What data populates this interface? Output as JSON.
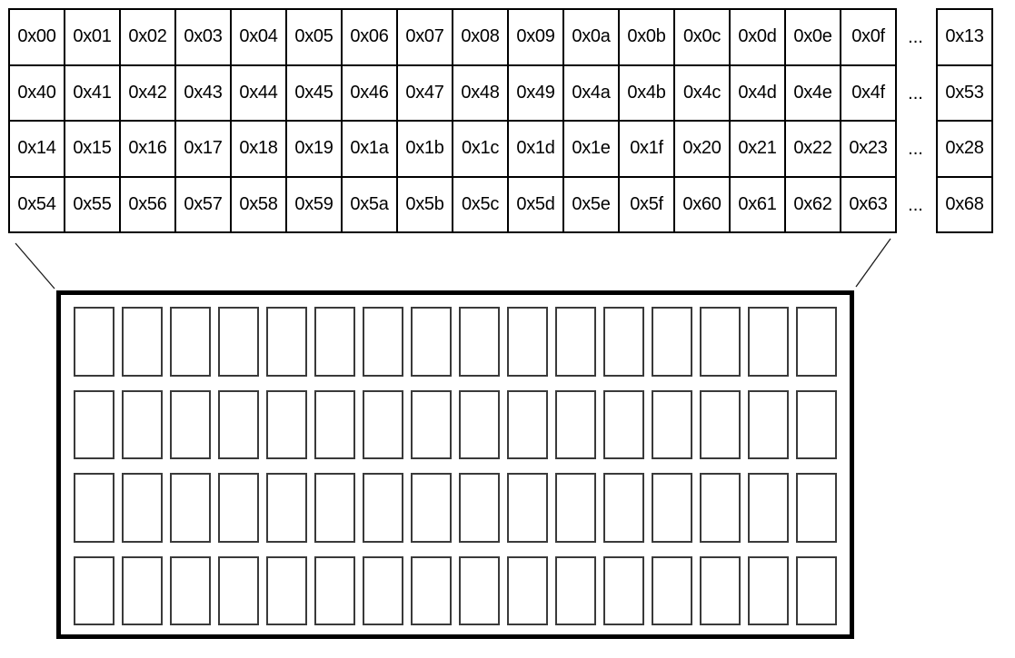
{
  "colors": {
    "background": "#ffffff",
    "table_border": "#000000",
    "box_border": "#000000",
    "inner_cell_border": "#3a3a3a",
    "connector_line": "#1c1c1c"
  },
  "address_table": {
    "rows": [
      {
        "cells": [
          "0x00",
          "0x01",
          "0x02",
          "0x03",
          "0x04",
          "0x05",
          "0x06",
          "0x07",
          "0x08",
          "0x09",
          "0x0a",
          "0x0b",
          "0x0c",
          "0x0d",
          "0x0e",
          "0x0f"
        ],
        "ellipsis": "...",
        "tail": "0x13"
      },
      {
        "cells": [
          "0x40",
          "0x41",
          "0x42",
          "0x43",
          "0x44",
          "0x45",
          "0x46",
          "0x47",
          "0x48",
          "0x49",
          "0x4a",
          "0x4b",
          "0x4c",
          "0x4d",
          "0x4e",
          "0x4f"
        ],
        "ellipsis": "...",
        "tail": "0x53"
      },
      {
        "cells": [
          "0x14",
          "0x15",
          "0x16",
          "0x17",
          "0x18",
          "0x19",
          "0x1a",
          "0x1b",
          "0x1c",
          "0x1d",
          "0x1e",
          "0x1f",
          "0x20",
          "0x21",
          "0x22",
          "0x23"
        ],
        "ellipsis": "...",
        "tail": "0x28"
      },
      {
        "cells": [
          "0x54",
          "0x55",
          "0x56",
          "0x57",
          "0x58",
          "0x59",
          "0x5a",
          "0x5b",
          "0x5c",
          "0x5d",
          "0x5e",
          "0x5f",
          "0x60",
          "0x61",
          "0x62",
          "0x63"
        ],
        "ellipsis": "...",
        "tail": "0x68"
      }
    ]
  },
  "memory_box": {
    "rows": 4,
    "columns": 16,
    "cell_count": 64
  }
}
